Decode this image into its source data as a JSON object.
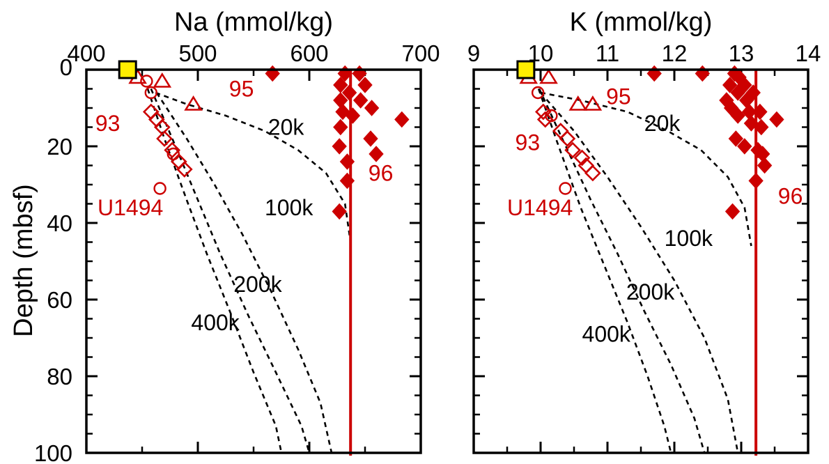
{
  "colors": {
    "data": "#cc0000",
    "model": "#000000",
    "seawater": "#ffee00",
    "axis": "#000000"
  },
  "ylabel": "Depth (mbsf)",
  "chart_data": [
    {
      "type": "scatter",
      "title": "",
      "xlabel": "Na (mmol/kg)",
      "ylabel": "Depth (mbsf)",
      "xlim": [
        400,
        700
      ],
      "ylim": [
        100,
        0
      ],
      "xticks": [
        "400",
        "500",
        "600",
        "700"
      ],
      "yticks": [
        "0",
        "20",
        "40",
        "60",
        "80",
        "100"
      ],
      "grid": false,
      "seawater": {
        "x": 437,
        "y": 0
      },
      "baseline": 637,
      "series": [
        {
          "name": "93",
          "marker": "diamond-open",
          "points": [
            [
              458,
              11
            ],
            [
              463,
              13
            ],
            [
              468,
              15
            ],
            [
              470,
              18
            ],
            [
              477,
              21
            ],
            [
              483,
              24
            ],
            [
              488,
              26
            ]
          ]
        },
        {
          "name": "95",
          "marker": "triangle-open",
          "points": [
            [
              446,
              2
            ],
            [
              468,
              3
            ],
            [
              496,
              9
            ]
          ]
        },
        {
          "name": "U1494",
          "marker": "circle-open",
          "points": [
            [
              454,
              3
            ],
            [
              458,
              6
            ],
            [
              478,
              22
            ],
            [
              466,
              31
            ]
          ]
        },
        {
          "name": "96",
          "marker": "diamond-filled",
          "points": [
            [
              567,
              1
            ],
            [
              632,
              1
            ],
            [
              645,
              1
            ],
            [
              650,
              4
            ],
            [
              628,
              4
            ],
            [
              636,
              6
            ],
            [
              628,
              8
            ],
            [
              646,
              8
            ],
            [
              656,
              10
            ],
            [
              630,
              11
            ],
            [
              639,
              12
            ],
            [
              683,
              13
            ],
            [
              628,
              15
            ],
            [
              655,
              18
            ],
            [
              627,
              20
            ],
            [
              660,
              22
            ],
            [
              634,
              24
            ],
            [
              634,
              29
            ],
            [
              627,
              37
            ]
          ]
        }
      ],
      "curves": [
        {
          "label": "20k",
          "points": [
            [
              462,
              6
            ],
            [
              490,
              9
            ],
            [
              525,
              12
            ],
            [
              560,
              16
            ],
            [
              590,
              21
            ],
            [
              615,
              27
            ],
            [
              632,
              35
            ],
            [
              637,
              45
            ]
          ]
        },
        {
          "label": "100k",
          "points": [
            [
              463,
              6
            ],
            [
              490,
              18
            ],
            [
              515,
              30
            ],
            [
              540,
              43
            ],
            [
              566,
              58
            ],
            [
              590,
              73
            ],
            [
              610,
              87
            ],
            [
              620,
              100
            ]
          ]
        },
        {
          "label": "200k",
          "points": [
            [
              458,
              5
            ],
            [
              480,
              20
            ],
            [
              500,
              34
            ],
            [
              520,
              48
            ],
            [
              545,
              64
            ],
            [
              570,
              79
            ],
            [
              593,
              93
            ],
            [
              600,
              100
            ]
          ]
        },
        {
          "label": "400k",
          "points": [
            [
              455,
              5
            ],
            [
              470,
              18
            ],
            [
              490,
              34
            ],
            [
              508,
              48
            ],
            [
              530,
              64
            ],
            [
              550,
              79
            ],
            [
              570,
              93
            ],
            [
              575,
              100
            ]
          ]
        }
      ],
      "labels": [
        {
          "text": "93",
          "x": 408,
          "y": 16,
          "color": "data"
        },
        {
          "text": "95",
          "x": 528,
          "y": 7,
          "color": "data"
        },
        {
          "text": "U1494",
          "x": 410,
          "y": 38,
          "color": "data"
        },
        {
          "text": "96",
          "x": 653,
          "y": 29,
          "color": "data"
        },
        {
          "text": "20k",
          "x": 563,
          "y": 17,
          "color": "model"
        },
        {
          "text": "100k",
          "x": 560,
          "y": 38,
          "color": "model"
        },
        {
          "text": "200k",
          "x": 532,
          "y": 58,
          "color": "model"
        },
        {
          "text": "400k",
          "x": 494,
          "y": 68,
          "color": "model"
        }
      ]
    },
    {
      "type": "scatter",
      "title": "",
      "xlabel": "K (mmol/kg)",
      "ylabel": "Depth (mbsf)",
      "xlim": [
        9,
        14
      ],
      "ylim": [
        100,
        0
      ],
      "xticks": [
        "9",
        "10",
        "11",
        "12",
        "13",
        "14"
      ],
      "yticks": [
        "0",
        "20",
        "40",
        "60",
        "80",
        "100"
      ],
      "grid": false,
      "seawater": {
        "x": 9.78,
        "y": 0
      },
      "baseline": 13.22,
      "series": [
        {
          "name": "93",
          "marker": "diamond-open",
          "points": [
            [
              10.04,
              11
            ],
            [
              10.07,
              13
            ],
            [
              10.3,
              16
            ],
            [
              10.4,
              18
            ],
            [
              10.48,
              21
            ],
            [
              10.62,
              23
            ],
            [
              10.68,
              25
            ],
            [
              10.78,
              27
            ]
          ]
        },
        {
          "name": "95",
          "marker": "triangle-open",
          "points": [
            [
              9.82,
              2
            ],
            [
              10.12,
              2
            ],
            [
              10.56,
              9
            ],
            [
              10.78,
              9
            ]
          ]
        },
        {
          "name": "U1494",
          "marker": "circle-open",
          "points": [
            [
              9.96,
              6
            ],
            [
              10.16,
              12
            ],
            [
              10.37,
              31
            ]
          ]
        },
        {
          "name": "96",
          "marker": "diamond-filled",
          "points": [
            [
              11.7,
              1
            ],
            [
              12.42,
              1
            ],
            [
              12.9,
              1
            ],
            [
              12.97,
              2
            ],
            [
              12.83,
              4
            ],
            [
              13.05,
              4
            ],
            [
              12.95,
              6
            ],
            [
              13.18,
              6
            ],
            [
              12.78,
              8
            ],
            [
              13.08,
              8
            ],
            [
              12.85,
              10
            ],
            [
              13.12,
              11
            ],
            [
              13.28,
              11
            ],
            [
              12.95,
              12
            ],
            [
              13.53,
              13
            ],
            [
              13.15,
              14
            ],
            [
              13.3,
              15
            ],
            [
              12.92,
              18
            ],
            [
              13.05,
              20
            ],
            [
              13.25,
              21
            ],
            [
              13.32,
              22
            ],
            [
              13.35,
              25
            ],
            [
              13.22,
              29
            ],
            [
              12.87,
              37
            ]
          ]
        }
      ],
      "curves": [
        {
          "label": "20k",
          "points": [
            [
              10.0,
              6
            ],
            [
              10.6,
              8
            ],
            [
              11.3,
              11
            ],
            [
              11.9,
              16
            ],
            [
              12.4,
              21
            ],
            [
              12.8,
              28
            ],
            [
              13.05,
              36
            ],
            [
              13.15,
              46
            ]
          ]
        },
        {
          "label": "100k",
          "points": [
            [
              10.0,
              6
            ],
            [
              10.5,
              16
            ],
            [
              11.0,
              28
            ],
            [
              11.5,
              41
            ],
            [
              12.0,
              55
            ],
            [
              12.45,
              70
            ],
            [
              12.8,
              86
            ],
            [
              12.95,
              100
            ]
          ]
        },
        {
          "label": "200k",
          "points": [
            [
              9.98,
              5
            ],
            [
              10.35,
              19
            ],
            [
              10.75,
              34
            ],
            [
              11.15,
              48
            ],
            [
              11.55,
              63
            ],
            [
              11.95,
              77
            ],
            [
              12.3,
              91
            ],
            [
              12.45,
              100
            ]
          ]
        },
        {
          "label": "400k",
          "points": [
            [
              9.97,
              5
            ],
            [
              10.25,
              19
            ],
            [
              10.6,
              36
            ],
            [
              10.95,
              51
            ],
            [
              11.3,
              66
            ],
            [
              11.6,
              80
            ],
            [
              11.85,
              93
            ],
            [
              11.95,
              100
            ]
          ]
        }
      ],
      "labels": [
        {
          "text": "93",
          "x": 9.62,
          "y": 21,
          "color": "data"
        },
        {
          "text": "95",
          "x": 10.98,
          "y": 9,
          "color": "data"
        },
        {
          "text": "U1494",
          "x": 9.5,
          "y": 38,
          "color": "data"
        },
        {
          "text": "96",
          "x": 13.55,
          "y": 35,
          "color": "data"
        },
        {
          "text": "20k",
          "x": 11.55,
          "y": 16,
          "color": "model"
        },
        {
          "text": "100k",
          "x": 11.85,
          "y": 46,
          "color": "model"
        },
        {
          "text": "200k",
          "x": 11.28,
          "y": 60,
          "color": "model"
        },
        {
          "text": "400k",
          "x": 10.62,
          "y": 71,
          "color": "model"
        }
      ]
    }
  ]
}
